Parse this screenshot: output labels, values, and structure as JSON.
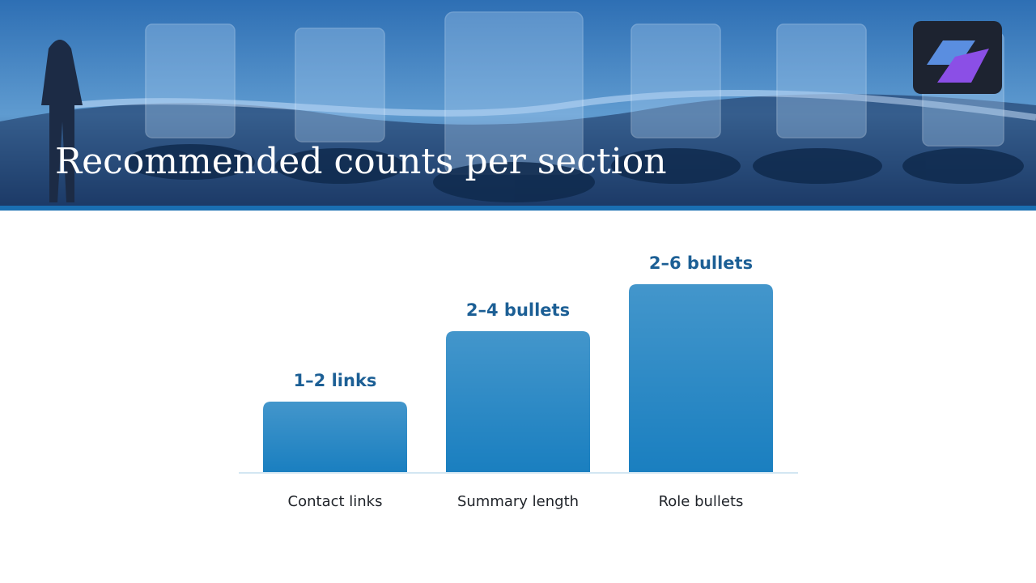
{
  "chart_data": {
    "type": "bar",
    "title": "Recommended counts per section",
    "categories": [
      "Contact links",
      "Summary length",
      "Role bullets"
    ],
    "values": [
      1.5,
      3,
      4
    ],
    "value_labels": [
      "1–2 links",
      "2–4 bullets",
      "2–6 bullets"
    ],
    "color": "#1a7fc0"
  }
}
